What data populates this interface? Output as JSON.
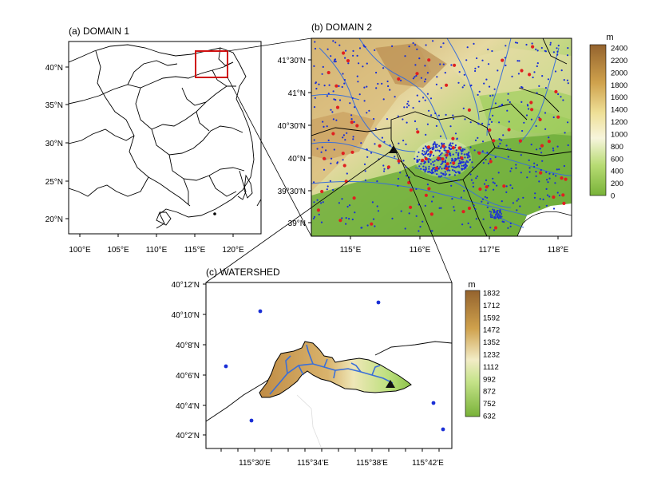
{
  "panels": {
    "a": {
      "title": "(a) DOMAIN 1",
      "x_ticks": [
        "100°E",
        "105°E",
        "110°E",
        "115°E",
        "120°E"
      ],
      "y_ticks": [
        "40°N",
        "35°N",
        "30°N",
        "25°N",
        "20°N"
      ]
    },
    "b": {
      "title": "(b) DOMAIN 2",
      "x_ticks": [
        "115°E",
        "116°E",
        "117°E",
        "118°E"
      ],
      "y_ticks": [
        "41°30'N",
        "41°N",
        "40°30'N",
        "40°N",
        "39°30'N",
        "39°N"
      ],
      "colorbar": {
        "unit": "m",
        "labels": [
          "2400",
          "2200",
          "2000",
          "1800",
          "1600",
          "1400",
          "1200",
          "1000",
          "800",
          "600",
          "400",
          "200",
          "0"
        ]
      }
    },
    "c": {
      "title": "(c) WATERSHED",
      "x_ticks": [
        "115°30'E",
        "115°34'E",
        "115°38'E",
        "115°42'E"
      ],
      "y_ticks": [
        "40°12'N",
        "40°10'N",
        "40°8'N",
        "40°6'N",
        "40°4'N",
        "40°2'N"
      ],
      "colorbar": {
        "unit": "m",
        "labels": [
          "1832",
          "1712",
          "1592",
          "1472",
          "1352",
          "1232",
          "1112",
          "992",
          "872",
          "752",
          "632"
        ]
      }
    }
  },
  "colors": {
    "terrain_low": "#7fb53a",
    "terrain_mid": "#f4f0c8",
    "terrain_high": "#9a6a35",
    "station_blue": "#1a2fd6",
    "station_red": "#e02020",
    "highlight_box": "#d01010",
    "river": "#3a6fd8"
  }
}
